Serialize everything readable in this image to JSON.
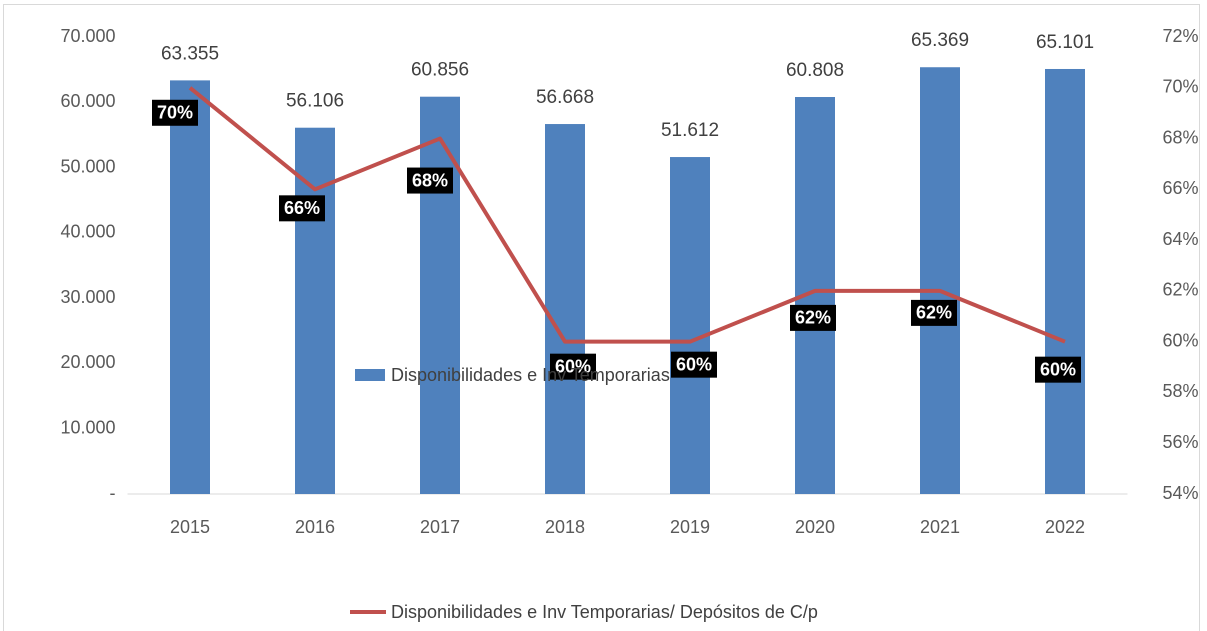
{
  "chart_data": {
    "type": "bar_line",
    "categories": [
      "2015",
      "2016",
      "2017",
      "2018",
      "2019",
      "2020",
      "2021",
      "2022"
    ],
    "series": [
      {
        "name": "Disponibilidades e Inv Temporarias",
        "type": "bar",
        "color": "#4f81bd",
        "values": [
          63355,
          56106,
          60856,
          56668,
          51612,
          60808,
          65369,
          65101
        ],
        "value_labels": [
          "63.355",
          "56.106",
          "60.856",
          "56.668",
          "51.612",
          "60.808",
          "65.369",
          "65.101"
        ]
      },
      {
        "name": "Disponibilidades e Inv Temporarias/ Depósitos de C/p",
        "type": "line",
        "color": "#c0504d",
        "axis": "y2",
        "values": [
          70,
          66,
          68,
          60,
          60,
          62,
          62,
          60
        ],
        "value_labels": [
          "70%",
          "66%",
          "68%",
          "60%",
          "60%",
          "62%",
          "62%",
          "60%"
        ]
      }
    ],
    "ylim": [
      0,
      70000
    ],
    "yticks": [
      {
        "value": 0,
        "label": "-"
      },
      {
        "value": 10000,
        "label": "10.000"
      },
      {
        "value": 20000,
        "label": "20.000"
      },
      {
        "value": 30000,
        "label": "30.000"
      },
      {
        "value": 40000,
        "label": "40.000"
      },
      {
        "value": 50000,
        "label": "50.000"
      },
      {
        "value": 60000,
        "label": "60.000"
      },
      {
        "value": 70000,
        "label": "70.000"
      }
    ],
    "y2lim": [
      54,
      72
    ],
    "y2ticks": [
      {
        "value": 54,
        "label": "54%"
      },
      {
        "value": 56,
        "label": "56%"
      },
      {
        "value": 58,
        "label": "58%"
      },
      {
        "value": 60,
        "label": "60%"
      },
      {
        "value": 62,
        "label": "62%"
      },
      {
        "value": 64,
        "label": "64%"
      },
      {
        "value": 66,
        "label": "66%"
      },
      {
        "value": 68,
        "label": "68%"
      },
      {
        "value": 70,
        "label": "70%"
      },
      {
        "value": 72,
        "label": "72%"
      }
    ],
    "grid": false,
    "legend": "bottom"
  }
}
